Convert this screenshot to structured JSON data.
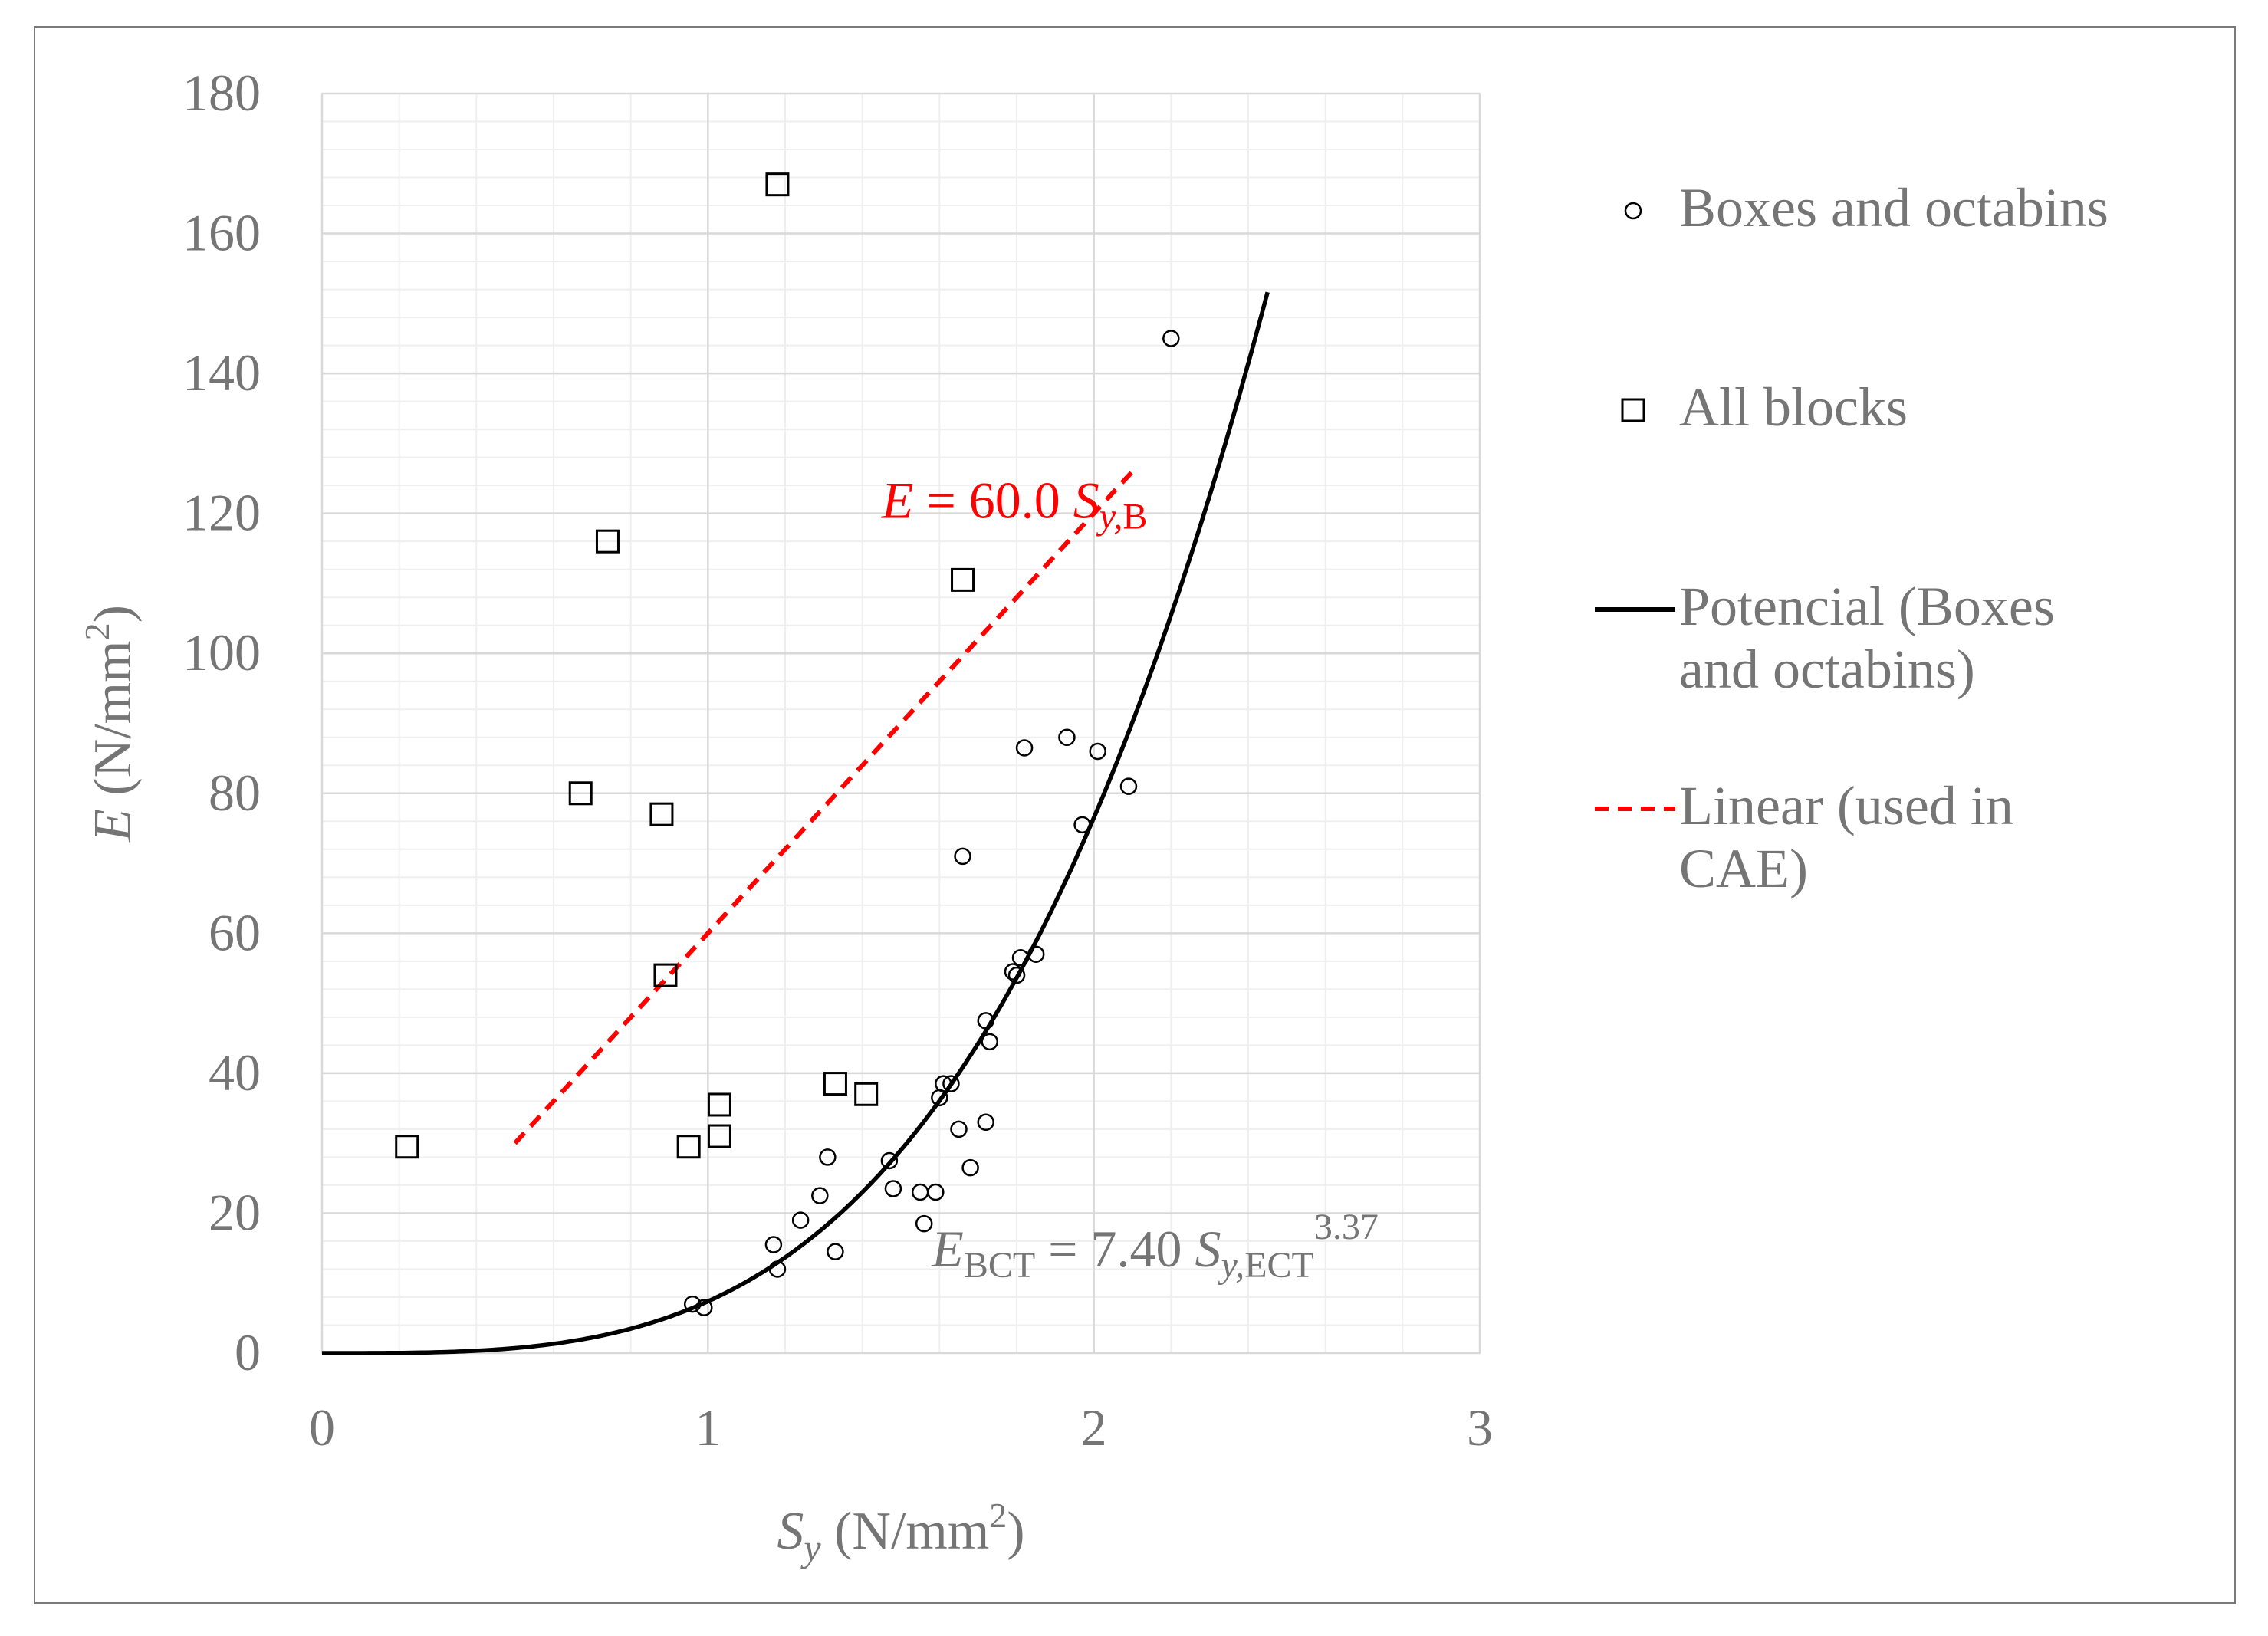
{
  "chart_data": {
    "type": "scatter",
    "xlim": [
      0,
      3
    ],
    "ylim": [
      0,
      180
    ],
    "x_ticks": [
      "0",
      "1",
      "2",
      "3"
    ],
    "y_ticks": [
      "0",
      "20",
      "40",
      "60",
      "80",
      "100",
      "120",
      "140",
      "160",
      "180"
    ],
    "xlabel": {
      "var": "S",
      "sub": "y",
      "unit": " (N/mm",
      "sup": "2",
      "close": ")"
    },
    "ylabel": {
      "var": "E",
      "unit": " (N/mm",
      "sup": "2",
      "close": ")"
    },
    "grid": {
      "major": true,
      "minor": true
    },
    "legend": {
      "position": "right",
      "entries": [
        {
          "marker": "circle",
          "lines": [
            "Boxes and octabins"
          ]
        },
        {
          "marker": "square",
          "lines": [
            "All blocks"
          ]
        },
        {
          "marker": "solid-line",
          "color": "#000000",
          "lines": [
            "Potencial (Boxes",
            "and octabins)"
          ]
        },
        {
          "marker": "dashed-line",
          "color": "#ff0000",
          "lines": [
            "Linear (used in",
            "CAE)"
          ]
        }
      ]
    },
    "series": [
      {
        "name": "Boxes and octabins",
        "marker": "circle",
        "points": [
          [
            0.96,
            7
          ],
          [
            0.99,
            6.5
          ],
          [
            1.17,
            15.5
          ],
          [
            1.18,
            12
          ],
          [
            1.24,
            19
          ],
          [
            1.29,
            22.5
          ],
          [
            1.31,
            28
          ],
          [
            1.33,
            14.5
          ],
          [
            1.47,
            27.5
          ],
          [
            1.48,
            23.5
          ],
          [
            1.55,
            23
          ],
          [
            1.56,
            18.5
          ],
          [
            1.59,
            23
          ],
          [
            1.6,
            36.5
          ],
          [
            1.61,
            38.5
          ],
          [
            1.63,
            38.5
          ],
          [
            1.65,
            32
          ],
          [
            1.66,
            71
          ],
          [
            1.68,
            26.5
          ],
          [
            1.72,
            33
          ],
          [
            1.72,
            47.5
          ],
          [
            1.73,
            44.5
          ],
          [
            1.79,
            54.5
          ],
          [
            1.8,
            54
          ],
          [
            1.81,
            56.5
          ],
          [
            1.82,
            86.5
          ],
          [
            1.85,
            57
          ],
          [
            1.93,
            88
          ],
          [
            1.97,
            75.5
          ],
          [
            2.01,
            86
          ],
          [
            2.09,
            81
          ],
          [
            2.2,
            145
          ]
        ]
      },
      {
        "name": "All blocks",
        "marker": "square",
        "points": [
          [
            0.22,
            29.5
          ],
          [
            0.67,
            80
          ],
          [
            0.74,
            116
          ],
          [
            0.88,
            77
          ],
          [
            0.89,
            54
          ],
          [
            0.95,
            29.5
          ],
          [
            1.03,
            35.5
          ],
          [
            1.03,
            31
          ],
          [
            1.18,
            167
          ],
          [
            1.33,
            38.5
          ],
          [
            1.41,
            37
          ],
          [
            1.66,
            110.5
          ]
        ]
      }
    ],
    "fits": [
      {
        "name": "Potencial (Boxes and octabins)",
        "kind": "power",
        "coef": 7.4,
        "exponent": 3.37,
        "x_range": [
          0,
          2.45
        ],
        "color": "#000000",
        "dash": false
      },
      {
        "name": "Linear (used in CAE)",
        "kind": "linear",
        "slope": 60.0,
        "x_range": [
          0.5,
          2.1
        ],
        "color": "#ff0000",
        "dash": true
      }
    ],
    "annotations": {
      "linear": {
        "var": "E",
        "eq": " = 60.0 ",
        "s": "S",
        "sub": "y,",
        "sub2": "B",
        "at": [
          1.45,
          122
        ]
      },
      "power": {
        "var": "E",
        "varsub": "BCT",
        "eq": " = 7.40 ",
        "s": "S",
        "sub": "y,",
        "sub2": "ECT",
        "sup": "3.37",
        "at": [
          1.58,
          15
        ]
      }
    }
  }
}
